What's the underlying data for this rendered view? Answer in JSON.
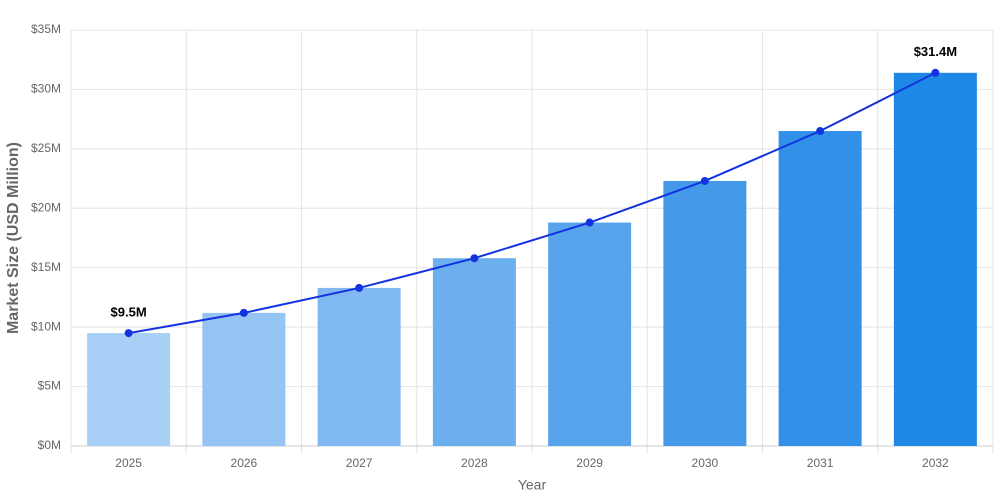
{
  "chart_data": {
    "type": "bar",
    "x_label": "Year",
    "y_label": "Market Size (USD Million)",
    "categories": [
      "2025",
      "2026",
      "2027",
      "2028",
      "2029",
      "2030",
      "2031",
      "2032"
    ],
    "values": [
      9.5,
      11.2,
      13.3,
      15.8,
      18.8,
      22.3,
      26.5,
      31.4
    ],
    "value_labels": [
      "$9.5M",
      null,
      null,
      null,
      null,
      null,
      null,
      "$31.4M"
    ],
    "colors": [
      "#a8cff5",
      "#94c4f3",
      "#80b9f1",
      "#6cafee",
      "#58a4ec",
      "#449ae9",
      "#3190e7",
      "#1e88e5"
    ],
    "line_color": "#1433e0",
    "ylim": [
      0,
      35
    ],
    "yticks": [
      {
        "value": 0,
        "label": "$0M"
      },
      {
        "value": 5,
        "label": "$5M"
      },
      {
        "value": 10,
        "label": "$10M"
      },
      {
        "value": 15,
        "label": "$15M"
      },
      {
        "value": 20,
        "label": "$20M"
      },
      {
        "value": 25,
        "label": "$25M"
      },
      {
        "value": 30,
        "label": "$30M"
      },
      {
        "value": 35,
        "label": "$35M"
      }
    ],
    "grid": true
  }
}
